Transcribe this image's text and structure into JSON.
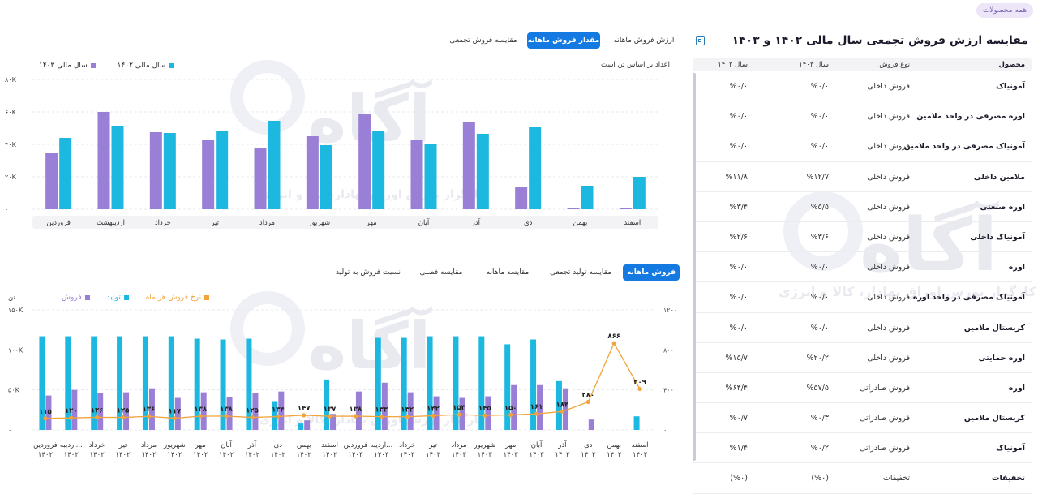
{
  "chip": "همه محصولات",
  "title": "مقایسه ارزش فروش تجمعی سال مالی ۱۴۰۲ و ۱۴۰۳",
  "table": {
    "headers": {
      "product": "محصول",
      "type": "نوع فروش",
      "y1403": "سال ۱۴۰۳",
      "y1402": "سال ۱۴۰۲"
    },
    "rows": [
      {
        "product": "آمونیاک",
        "type": "فروش داخلی",
        "y1403": "%۰/۰",
        "y1402": "%۰/۰"
      },
      {
        "product": "اوره مصرفی در واحد ملامین",
        "type": "فروش داخلی",
        "y1403": "%۰/۰",
        "y1402": "%۰/۰"
      },
      {
        "product": "آمونیاک مصرفی در واحد ملامین",
        "type": "فروش داخلی",
        "y1403": "%۰/۰",
        "y1402": "%۰/۰"
      },
      {
        "product": "ملامین داخلی",
        "type": "فروش داخلی",
        "y1403": "%۱۲/۷",
        "y1402": "%۱۱/۸"
      },
      {
        "product": "اوره صنعتی",
        "type": "فروش داخلی",
        "y1403": "%۵/۵",
        "y1402": "%۳/۴"
      },
      {
        "product": "آمونیاک داخلی",
        "type": "فروش داخلی",
        "y1403": "%۳/۶",
        "y1402": "%۲/۶"
      },
      {
        "product": "اوره",
        "type": "فروش داخلی",
        "y1403": "%۰/۰",
        "y1402": "%۰/۰"
      },
      {
        "product": "آمونیاک مصرفی در واحد اوره",
        "type": "فروش داخلی",
        "y1403": "%۰/۰",
        "y1402": "%۰/۰"
      },
      {
        "product": "کریستال ملامین",
        "type": "فروش داخلی",
        "y1403": "%۰/۰",
        "y1402": "%۰/۰"
      },
      {
        "product": "اوره حمایتی",
        "type": "فروش داخلی",
        "y1403": "%۲۰/۲",
        "y1402": "%۱۵/۷"
      },
      {
        "product": "اوره",
        "type": "فروش صادراتی",
        "y1403": "%۵۷/۵",
        "y1402": "%۶۴/۴"
      },
      {
        "product": "کریستال ملامین",
        "type": "فروش صادراتی",
        "y1403": "%۰/۳",
        "y1402": "%۰/۷"
      },
      {
        "product": "آمونیاک",
        "type": "فروش صادراتی",
        "y1403": "%۰/۲",
        "y1402": "%۱/۴"
      },
      {
        "product": "تخفیفات",
        "type": "تخفیفات",
        "y1403": "(%۰)",
        "y1402": "(%۰)"
      }
    ]
  },
  "tabs1": [
    "ارزش فروش ماهانه",
    "مقدار فروش ماهانه",
    "مقایسه فروش تجمعی"
  ],
  "tabs1_active": 1,
  "tabs2": [
    "فروش ماهانه",
    "مقایسه تولید تجمعی",
    "مقایسه ماهانه",
    "مقایسه فصلی",
    "نسبت فروش به تولید"
  ],
  "tabs2_active": 0,
  "chart1_note": "اعداد بر اساس تن است",
  "chart2_unit": "تن",
  "watermark": {
    "brand": "آگاه",
    "tagline": "کارگزار بورس اوراق بهادار، کالا و انرژی"
  },
  "chart_data": [
    {
      "type": "bar",
      "categories": [
        "اسفند",
        "بهمن",
        "دی",
        "آذر",
        "آبان",
        "مهر",
        "شهریور",
        "مرداد",
        "تیر",
        "خرداد",
        "اردیبهشت",
        "فروردین"
      ],
      "series": [
        {
          "name": "سال مالی ۱۴۰۲",
          "color": "#1cb8e0",
          "values": [
            20000,
            14500,
            50500,
            46500,
            40500,
            48500,
            39500,
            54500,
            48000,
            47000,
            51500,
            44000
          ]
        },
        {
          "name": "سال مالی ۱۴۰۳",
          "color": "#9a7fd6",
          "values": [
            0,
            0,
            14000,
            53500,
            42500,
            59000,
            45000,
            38000,
            43000,
            47500,
            60000,
            34500
          ]
        }
      ],
      "ylim": [
        0,
        80000
      ],
      "yticks": [
        "۰",
        "۲۰K",
        "۴۰K",
        "۶۰K",
        "۸۰K"
      ]
    },
    {
      "type": "bar",
      "categories": [
        [
          "اسفند",
          "۱۴۰۳"
        ],
        [
          "بهمن",
          "۱۴۰۳"
        ],
        [
          "دی",
          "۱۴۰۳"
        ],
        [
          "آذر",
          "۱۴۰۳"
        ],
        [
          "آبان",
          "۱۴۰۳"
        ],
        [
          "مهر",
          "۱۴۰۳"
        ],
        [
          "شهریور",
          "۱۴۰۳"
        ],
        [
          "مرداد",
          "۱۴۰۳"
        ],
        [
          "تیر",
          "۱۴۰۳"
        ],
        [
          "خرداد",
          "۱۴۰۳"
        ],
        [
          "اردیبه...",
          "۱۴۰۳"
        ],
        [
          "فروردین",
          "۱۴۰۳"
        ],
        [
          "اسفند",
          "۱۴۰۲"
        ],
        [
          "بهمن",
          "۱۴۰۲"
        ],
        [
          "دی",
          "۱۴۰۲"
        ],
        [
          "آذر",
          "۱۴۰۲"
        ],
        [
          "آبان",
          "۱۴۰۲"
        ],
        [
          "مهر",
          "۱۴۰۲"
        ],
        [
          "شهریور",
          "۱۴۰۲"
        ],
        [
          "مرداد",
          "۱۴۰۲"
        ],
        [
          "تیر",
          "۱۴۰۲"
        ],
        [
          "خرداد",
          "۱۴۰۲"
        ],
        [
          "اردیبه...",
          "۱۴۰۲"
        ],
        [
          "فروردین",
          "۱۴۰۲"
        ]
      ],
      "series": [
        {
          "name": "تولید",
          "color": "#1cb8e0",
          "values": [
            17000,
            0,
            0,
            61000,
            113000,
            107000,
            117000,
            117000,
            117000,
            115000,
            115000,
            0,
            63000,
            8000,
            36000,
            114000,
            113000,
            114000,
            117000,
            117000,
            117000,
            117000,
            117000,
            117000
          ]
        },
        {
          "name": "فروش",
          "color": "#9a7fd6",
          "values": [
            0,
            0,
            13000,
            52000,
            56000,
            56000,
            42000,
            40000,
            42000,
            47000,
            59000,
            48000,
            20000,
            12000,
            48000,
            46000,
            41000,
            47000,
            40000,
            52000,
            47000,
            46000,
            50000,
            43000
          ]
        },
        {
          "name": "نرخ فروش هر ماه",
          "color": "#f2a33a",
          "type": "line",
          "values": [
            409,
            866,
            280,
            184,
            161,
            150,
            145,
            153,
            142,
            132,
            133,
            138,
            137,
            147,
            134,
            125,
            138,
            138,
            117,
            136,
            125,
            126,
            120,
            115
          ]
        }
      ],
      "line_labels": [
        "۴۰۹",
        "۸۶۶",
        "۲۸۰",
        "۱۸۴",
        "۱۶۱",
        "۱۵۰",
        "۱۴۵",
        "۱۵۳",
        "۱۴۲",
        "۱۳۲",
        "۱۳۳",
        "۱۳۸",
        "۱۳۷",
        "۱۴۷",
        "۱۳۴",
        "۱۲۵",
        "۱۳۸",
        "۱۳۸",
        "۱۱۷",
        "۱۳۶",
        "۱۲۵",
        "۱۲۶",
        "۱۲۰",
        "۱۱۵"
      ],
      "ylim_left": [
        0,
        150000
      ],
      "yticks_left": [
        "۰",
        "۵۰K",
        "۱۰۰K",
        "۱۵۰K"
      ],
      "ylim_right": [
        0,
        1200
      ],
      "yticks_right": [
        "۰",
        "۴۰۰",
        "۸۰۰",
        "۱۲۰۰"
      ]
    }
  ]
}
